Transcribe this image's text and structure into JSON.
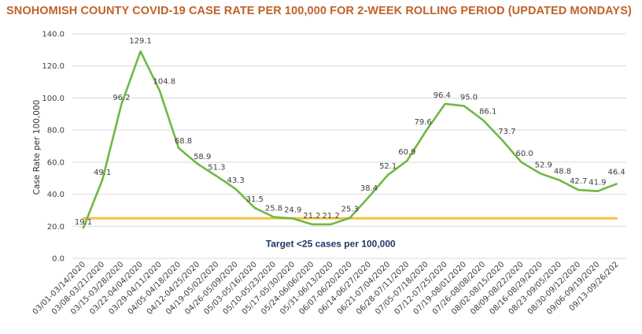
{
  "chart_data": {
    "type": "line",
    "title": "SNOHOMISH COUNTY COVID-19 CASE RATE PER 100,000 FOR 2-WEEK ROLLING PERIOD (UPDATED MONDAYS)",
    "xlabel": "",
    "ylabel": "Case Rate per 100,000",
    "ylim": [
      0,
      140
    ],
    "yticks": [
      "0.0",
      "20.0",
      "40.0",
      "60.0",
      "80.0",
      "100.0",
      "120.0",
      "140.0"
    ],
    "grid": true,
    "categories": [
      "03/01-03/14/2020",
      "03/08-03/21/2020",
      "03/15-03/28/2020",
      "03/22-04/04/2020",
      "03/29-04/11/2020",
      "04/05-04/18/2020",
      "04/12-04/25/2020",
      "04/19-05/02/2020",
      "04/26-05/09/2020",
      "05/03-05/16/2020",
      "05/10-05/23/2020",
      "05/17-05/30/2020",
      "05/24-06/06/2020",
      "05/31-06/13/2020",
      "06/07-06/20/2020",
      "06/14-06/27/2020",
      "06/21-07/04/2020",
      "06/28-07/11/2020",
      "07/05-07/18/2020",
      "07/12-07/25/2020",
      "07/19-08/01/2020",
      "07/26-08/08/2020",
      "08/02-08/15/2020",
      "08/09-08/22/2020",
      "08/16-08/29/2020",
      "08/23-09/05/2020",
      "08/30-09/12/2020",
      "09/06-09/19/2020",
      "09/13-09/26/202"
    ],
    "series": [
      {
        "name": "Case rate",
        "color": "#70b844",
        "values": [
          19.1,
          49.1,
          96.2,
          129.1,
          104.8,
          68.8,
          58.9,
          51.3,
          43.3,
          31.5,
          25.8,
          24.9,
          21.2,
          21.2,
          25.3,
          38.4,
          52.1,
          60.9,
          79.6,
          96.4,
          95.0,
          86.1,
          73.7,
          60.0,
          52.9,
          48.8,
          42.7,
          41.9,
          46.4
        ],
        "labels": [
          "19.1",
          "49.1",
          "96.2",
          "129.1",
          "104.8",
          "68.8",
          "58.9",
          "51.3",
          "43.3",
          "31.5",
          "25.8",
          "24.9",
          "21.2",
          "21.2",
          "25.3",
          "38.4",
          "52.1",
          "60.9",
          "79.6",
          "96.4",
          "95.0",
          "86.1",
          "73.7",
          "60.0",
          "52.9",
          "48.8",
          "42.7",
          "41.9",
          "46.4"
        ]
      },
      {
        "name": "Target",
        "color": "#f5c242",
        "values": [
          25,
          25,
          25,
          25,
          25,
          25,
          25,
          25,
          25,
          25,
          25,
          25,
          25,
          25,
          25,
          25,
          25,
          25,
          25,
          25,
          25,
          25,
          25,
          25,
          25,
          25,
          25,
          25,
          25
        ]
      }
    ],
    "annotations": [
      {
        "text": "Target <25 cases per 100,000",
        "x_index": 14,
        "y": 9
      }
    ]
  }
}
